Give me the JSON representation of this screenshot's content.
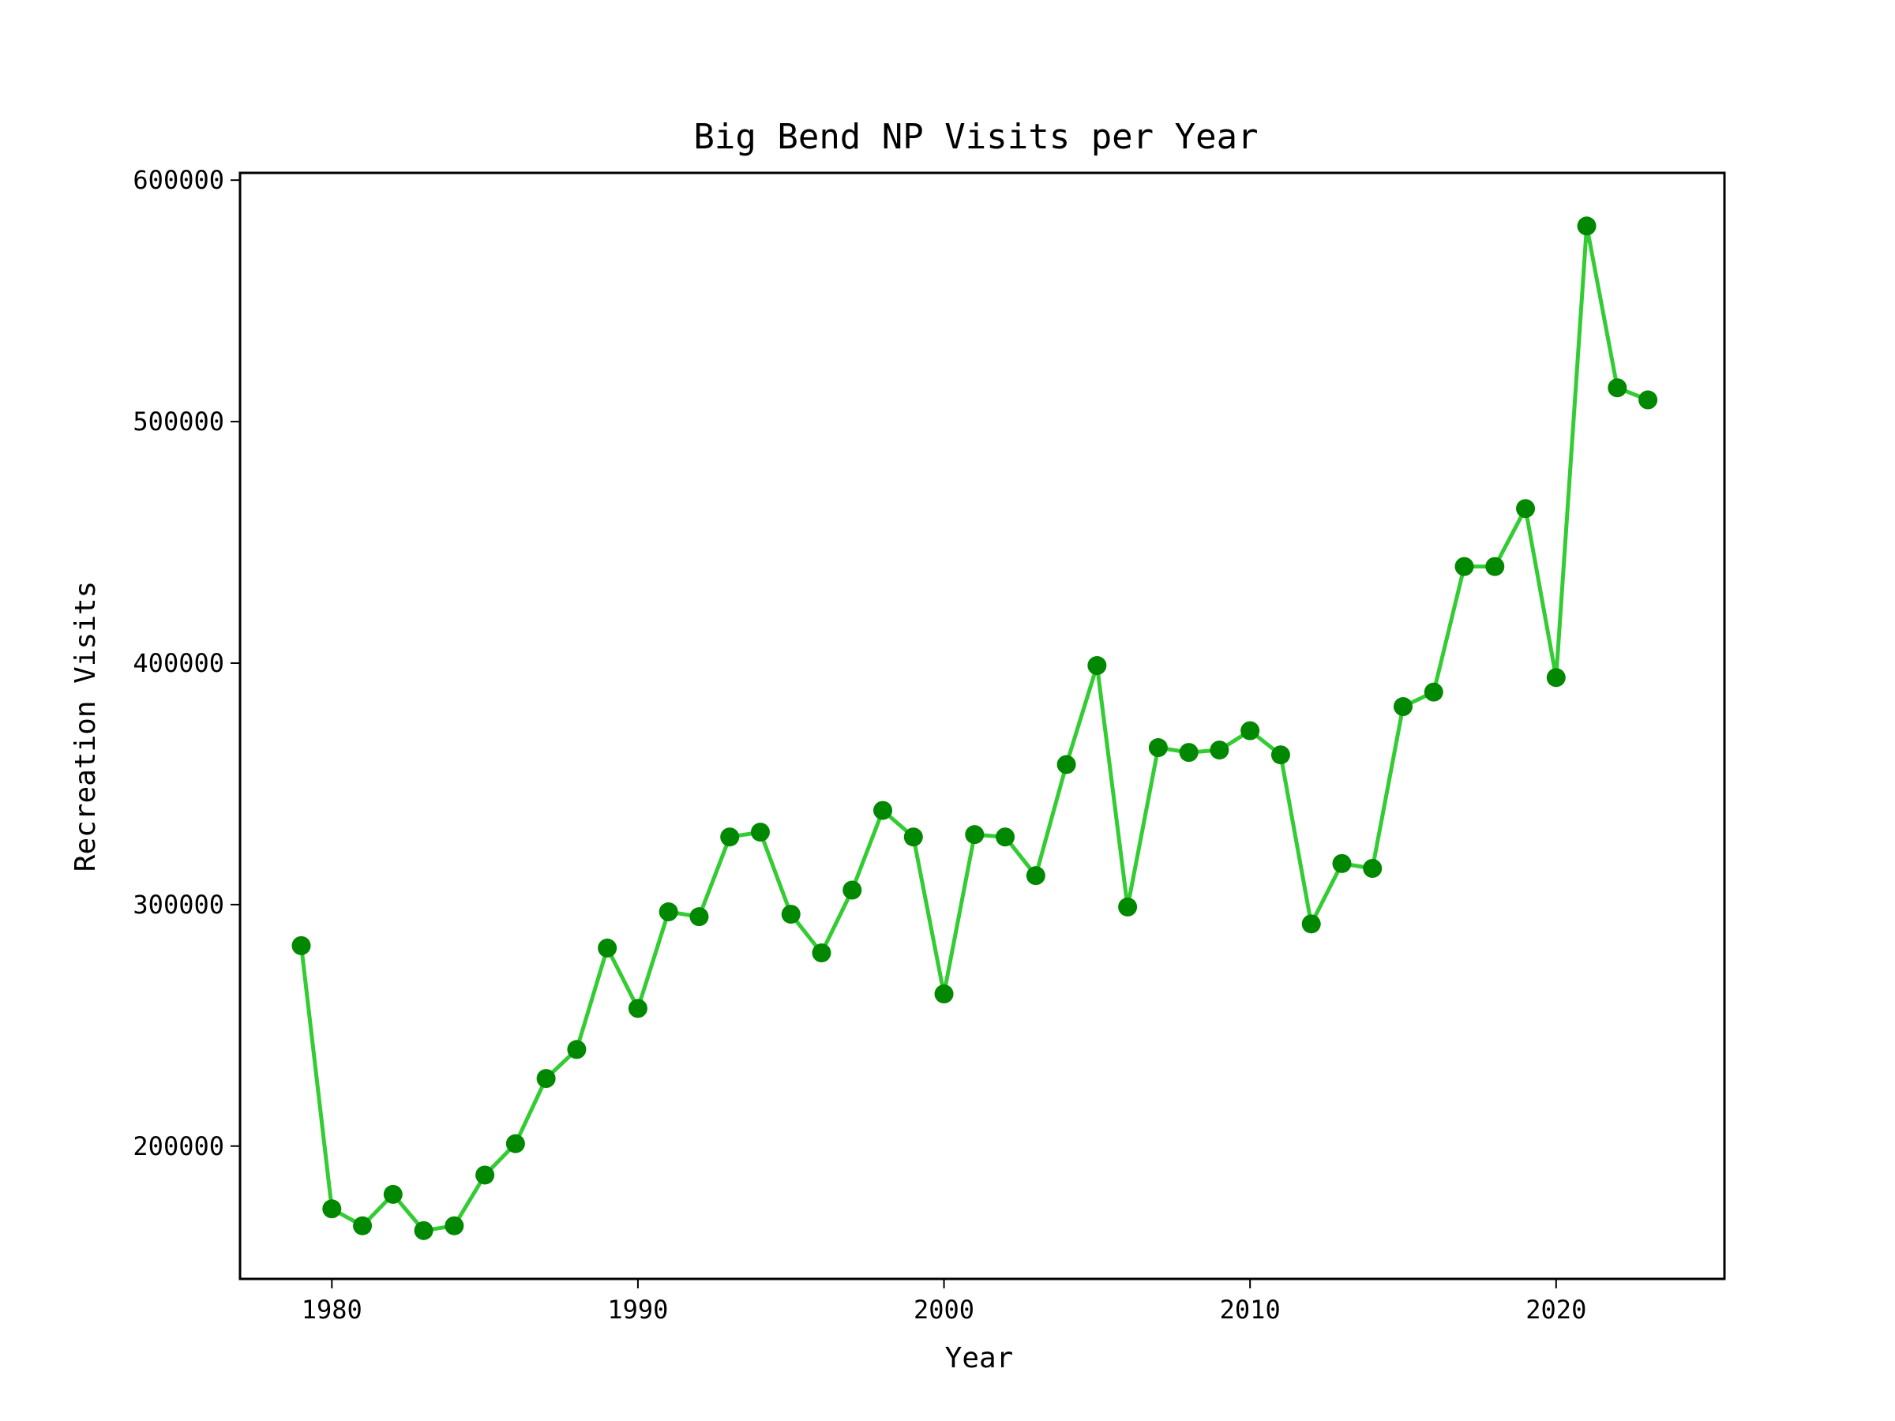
{
  "chart_data": {
    "type": "line",
    "title": "Big Bend NP Visits per Year",
    "xlabel": "Year",
    "ylabel": "Recreation Visits",
    "xlim": [
      1977,
      2025.5
    ],
    "ylim": [
      145000,
      603000
    ],
    "xticks": [
      1980,
      1990,
      2000,
      2010,
      2020
    ],
    "xtick_labels": [
      "1980",
      "1990",
      "2000",
      "2010",
      "2020"
    ],
    "yticks": [
      200000,
      300000,
      400000,
      500000,
      600000
    ],
    "ytick_labels": [
      "200000",
      "300000",
      "400000",
      "500000",
      "600000"
    ],
    "grid": false,
    "legend": "none",
    "line_color": "#33cc33",
    "marker_color": "#008800",
    "series": [
      {
        "x": [
          1979,
          1980,
          1981,
          1982,
          1983,
          1984,
          1985,
          1986,
          1987,
          1988,
          1989,
          1990,
          1991,
          1992,
          1993,
          1994,
          1995,
          1996,
          1997,
          1998,
          1999,
          2000,
          2001,
          2002,
          2003,
          2004,
          2005,
          2006,
          2007,
          2008,
          2009,
          2010,
          2011,
          2012,
          2013,
          2014,
          2015,
          2016,
          2017,
          2018,
          2019,
          2020,
          2021,
          2022,
          2023
        ],
        "values": [
          283000,
          174000,
          167000,
          180000,
          165000,
          167000,
          188000,
          201000,
          228000,
          240000,
          282000,
          257000,
          297000,
          295000,
          328000,
          330000,
          296000,
          280000,
          306000,
          339000,
          328000,
          263000,
          329000,
          328000,
          312000,
          358000,
          399000,
          299000,
          365000,
          363000,
          364000,
          372000,
          362000,
          292000,
          317000,
          315000,
          382000,
          388000,
          440000,
          440000,
          464000,
          394000,
          581000,
          514000,
          509000
        ]
      }
    ]
  }
}
